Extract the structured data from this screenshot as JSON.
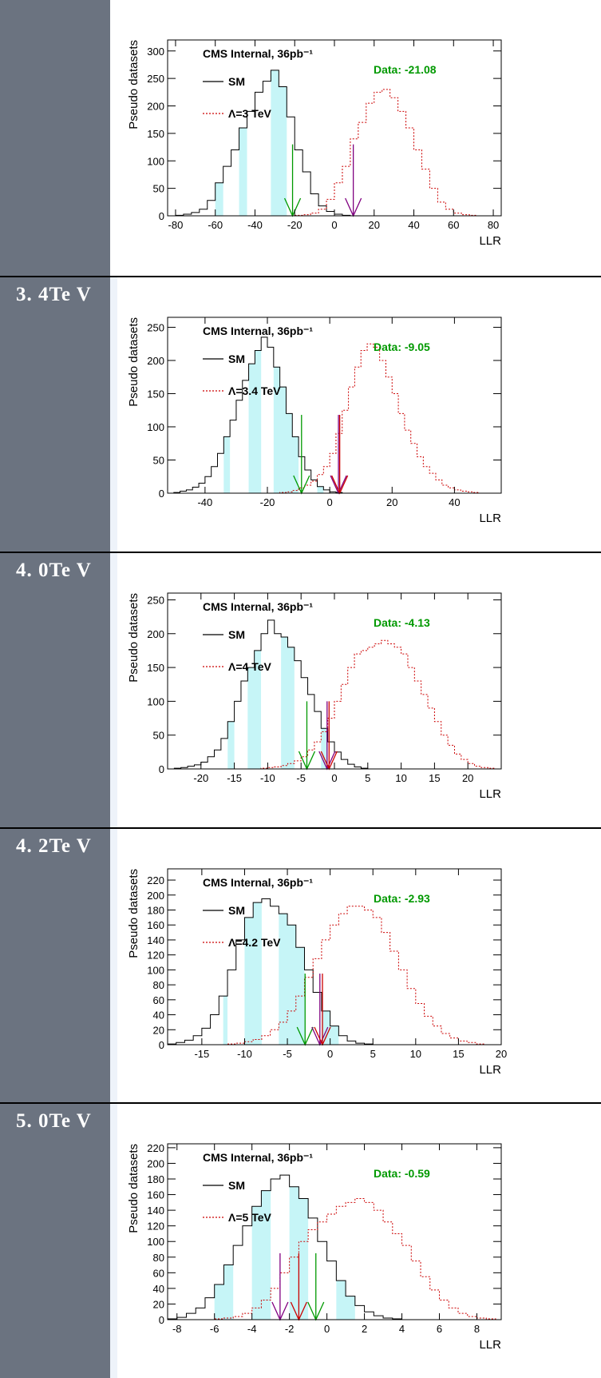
{
  "rows": [
    {
      "label": ""
    },
    {
      "label": "3. 4Te V"
    },
    {
      "label": "4. 0Te V"
    },
    {
      "label": "4. 2Te V"
    },
    {
      "label": "5. 0Te V"
    }
  ],
  "chart_data": [
    {
      "type": "histogram",
      "title": "CMS Internal, 36pb⁻¹",
      "data_label": "Data: -21.08",
      "xlabel": "LLR",
      "ylabel": "Pseudo datasets",
      "xlim": [
        -84,
        84
      ],
      "ylim": [
        0,
        320
      ],
      "xticks": [
        -80,
        -60,
        -40,
        -20,
        0,
        20,
        40,
        60,
        80
      ],
      "yticks": [
        0,
        50,
        100,
        150,
        200,
        250,
        300
      ],
      "x": [
        -84,
        -80,
        -76,
        -72,
        -68,
        -64,
        -60,
        -56,
        -52,
        -48,
        -44,
        -40,
        -36,
        -32,
        -28,
        -24,
        -20,
        -16,
        -12,
        -8,
        -4,
        0,
        4,
        8,
        12,
        16,
        20,
        24,
        28,
        32,
        36,
        40,
        44,
        48,
        52,
        56,
        60,
        64,
        68,
        72,
        76,
        80,
        84
      ],
      "series": [
        {
          "name": "SM",
          "style": "solid",
          "color": "#000000",
          "values": [
            0,
            1,
            3,
            6,
            12,
            28,
            60,
            90,
            120,
            160,
            190,
            225,
            245,
            265,
            235,
            180,
            120,
            80,
            40,
            18,
            8,
            3,
            1,
            0
          ]
        },
        {
          "name": "Λ=3 TeV",
          "style": "dotted",
          "color": "#cc0000",
          "values": [
            0,
            0,
            0,
            0,
            0,
            0,
            0,
            0,
            0,
            0,
            0,
            0,
            0,
            0,
            0,
            0,
            1,
            2,
            5,
            12,
            30,
            60,
            90,
            140,
            170,
            205,
            225,
            230,
            215,
            190,
            160,
            120,
            85,
            50,
            25,
            12,
            5,
            2,
            1,
            0
          ]
        }
      ],
      "bands": [
        [
          -60,
          -56
        ],
        [
          -48,
          -44
        ],
        [
          -32,
          -24
        ]
      ],
      "arrows": [
        {
          "x": -21.08,
          "color": "#009900",
          "y": 130
        },
        {
          "x": 9.5,
          "color": "#800080",
          "y": 130
        }
      ],
      "data_color": "#009900"
    },
    {
      "type": "histogram",
      "title": "CMS Internal, 36pb⁻¹",
      "data_label": "Data: -9.05",
      "xlabel": "LLR",
      "ylabel": "Pseudo datasets",
      "xlim": [
        -52,
        55
      ],
      "ylim": [
        0,
        265
      ],
      "xticks": [
        -40,
        -20,
        0,
        20,
        40
      ],
      "yticks": [
        0,
        50,
        100,
        150,
        200,
        250
      ],
      "x": [
        -52,
        -50,
        -48,
        -46,
        -44,
        -42,
        -40,
        -38,
        -36,
        -34,
        -32,
        -30,
        -28,
        -26,
        -24,
        -22,
        -20,
        -18,
        -16,
        -14,
        -12,
        -10,
        -8,
        -6,
        -4,
        -2,
        0,
        2,
        4,
        6,
        8,
        10,
        12,
        14,
        16,
        18,
        20,
        22,
        24,
        26,
        28,
        30,
        32,
        34,
        36,
        38,
        40,
        42,
        44,
        46,
        48,
        50,
        52,
        55
      ],
      "series": [
        {
          "name": "SM",
          "style": "solid",
          "color": "#000000",
          "values": [
            0,
            1,
            3,
            5,
            9,
            15,
            25,
            40,
            60,
            85,
            110,
            140,
            170,
            195,
            215,
            235,
            220,
            190,
            160,
            120,
            85,
            55,
            35,
            20,
            10,
            5,
            2,
            1,
            0,
            0,
            0,
            0,
            0,
            0,
            0,
            0,
            0,
            0,
            0,
            0,
            0,
            0,
            0,
            0,
            0,
            0,
            0,
            0,
            0,
            0,
            0,
            0,
            0
          ]
        },
        {
          "name": "Λ=3.4 TeV",
          "style": "dotted",
          "color": "#cc0000",
          "values": [
            0,
            0,
            0,
            0,
            0,
            0,
            0,
            0,
            0,
            0,
            0,
            0,
            0,
            0,
            0,
            0,
            0,
            0,
            1,
            2,
            4,
            8,
            12,
            18,
            28,
            40,
            60,
            90,
            125,
            160,
            190,
            215,
            225,
            220,
            200,
            175,
            150,
            120,
            95,
            75,
            55,
            40,
            30,
            20,
            12,
            8,
            5,
            3,
            2,
            1,
            0,
            0,
            0
          ]
        }
      ],
      "bands": [
        [
          -34,
          -32
        ],
        [
          -26,
          -22
        ],
        [
          -18,
          -10
        ],
        [
          -4,
          -2
        ]
      ],
      "arrows": [
        {
          "x": -9.05,
          "color": "#009900",
          "y": 118
        },
        {
          "x": 2.8,
          "color": "#800080",
          "y": 118
        },
        {
          "x": 3.2,
          "color": "#cc0000",
          "y": 118
        }
      ],
      "data_color": "#009900"
    },
    {
      "type": "histogram",
      "title": "CMS Internal, 36pb⁻¹",
      "data_label": "Data: -4.13",
      "xlabel": "LLR",
      "ylabel": "Pseudo datasets",
      "xlim": [
        -25,
        25
      ],
      "ylim": [
        0,
        260
      ],
      "xticks": [
        -20,
        -15,
        -10,
        -5,
        0,
        5,
        10,
        15,
        20
      ],
      "yticks": [
        0,
        50,
        100,
        150,
        200,
        250
      ],
      "x": [
        -25,
        -24,
        -23,
        -22,
        -21,
        -20,
        -19,
        -18,
        -17,
        -16,
        -15,
        -14,
        -13,
        -12,
        -11,
        -10,
        -9,
        -8,
        -7,
        -6,
        -5,
        -4,
        -3,
        -2,
        -1,
        0,
        1,
        2,
        3,
        4,
        5,
        6,
        7,
        8,
        9,
        10,
        11,
        12,
        13,
        14,
        15,
        16,
        17,
        18,
        19,
        20,
        21,
        22,
        23,
        24,
        25
      ],
      "series": [
        {
          "name": "SM",
          "style": "solid",
          "color": "#000000",
          "values": [
            0,
            1,
            2,
            4,
            6,
            10,
            18,
            28,
            45,
            70,
            100,
            130,
            150,
            175,
            200,
            220,
            200,
            195,
            180,
            160,
            135,
            110,
            85,
            60,
            40,
            25,
            14,
            7,
            3,
            1,
            0,
            0,
            0,
            0,
            0,
            0,
            0,
            0,
            0,
            0,
            0,
            0,
            0,
            0,
            0,
            0,
            0,
            0,
            0,
            0
          ]
        },
        {
          "name": "Λ=4 TeV",
          "style": "dotted",
          "color": "#cc0000",
          "values": [
            0,
            0,
            0,
            0,
            0,
            0,
            0,
            0,
            0,
            0,
            0,
            0,
            0,
            0,
            1,
            2,
            3,
            5,
            8,
            12,
            18,
            28,
            40,
            55,
            75,
            100,
            125,
            150,
            170,
            175,
            180,
            185,
            190,
            185,
            180,
            170,
            150,
            130,
            110,
            90,
            70,
            50,
            35,
            22,
            14,
            8,
            4,
            2,
            1,
            0
          ]
        }
      ],
      "bands": [
        [
          -16,
          -15
        ],
        [
          -13,
          -11
        ],
        [
          -8,
          -6
        ],
        [
          -2,
          -1
        ]
      ],
      "arrows": [
        {
          "x": -4.13,
          "color": "#009900",
          "y": 100
        },
        {
          "x": -1.1,
          "color": "#800080",
          "y": 100
        },
        {
          "x": -0.8,
          "color": "#cc0000",
          "y": 100
        }
      ],
      "data_color": "#009900"
    },
    {
      "type": "histogram",
      "title": "CMS Internal, 36pb⁻¹",
      "data_label": "Data: -2.93",
      "xlabel": "LLR",
      "ylabel": "Pseudo datasets",
      "xlim": [
        -19,
        20
      ],
      "ylim": [
        0,
        235
      ],
      "xticks": [
        -15,
        -10,
        -5,
        0,
        5,
        10,
        15,
        20
      ],
      "yticks": [
        0,
        20,
        40,
        60,
        80,
        100,
        120,
        140,
        160,
        180,
        200,
        220
      ],
      "x": [
        -19,
        -18,
        -17,
        -16,
        -15,
        -14,
        -13,
        -12,
        -11,
        -10,
        -9,
        -8,
        -7,
        -6,
        -5,
        -4,
        -3,
        -2,
        -1,
        0,
        1,
        2,
        3,
        4,
        5,
        6,
        7,
        8,
        9,
        10,
        11,
        12,
        13,
        14,
        15,
        16,
        17,
        18,
        19,
        20
      ],
      "series": [
        {
          "name": "SM",
          "style": "solid",
          "color": "#000000",
          "values": [
            1,
            3,
            6,
            12,
            22,
            40,
            65,
            100,
            140,
            170,
            190,
            195,
            185,
            175,
            160,
            130,
            100,
            70,
            45,
            25,
            12,
            5,
            2,
            1,
            0,
            0,
            0,
            0,
            0,
            0,
            0,
            0,
            0,
            0,
            0,
            0,
            0,
            0,
            0
          ]
        },
        {
          "name": "Λ=4.2 TeV",
          "style": "dotted",
          "color": "#cc0000",
          "values": [
            0,
            0,
            0,
            0,
            0,
            0,
            0,
            1,
            2,
            4,
            7,
            12,
            20,
            30,
            45,
            65,
            90,
            115,
            140,
            160,
            175,
            185,
            185,
            180,
            170,
            150,
            125,
            100,
            75,
            55,
            38,
            25,
            15,
            9,
            5,
            3,
            1,
            0,
            0
          ]
        }
      ],
      "bands": [
        [
          -12.5,
          -12
        ],
        [
          -10,
          -8
        ],
        [
          -6,
          -3
        ],
        [
          -1,
          1
        ]
      ],
      "arrows": [
        {
          "x": -2.93,
          "color": "#009900",
          "y": 95
        },
        {
          "x": -1.2,
          "color": "#800080",
          "y": 95
        },
        {
          "x": -0.9,
          "color": "#cc0000",
          "y": 95
        }
      ],
      "data_color": "#009900"
    },
    {
      "type": "histogram",
      "title": "CMS Internal, 36pb⁻¹",
      "data_label": "Data: -0.59",
      "xlabel": "LLR",
      "ylabel": "Pseudo datasets",
      "xlim": [
        -8.5,
        9.3
      ],
      "ylim": [
        0,
        225
      ],
      "xticks": [
        -8,
        -6,
        -4,
        -2,
        0,
        2,
        4,
        6,
        8
      ],
      "yticks": [
        0,
        20,
        40,
        60,
        80,
        100,
        120,
        140,
        160,
        180,
        200,
        220
      ],
      "x": [
        -8.5,
        -8,
        -7.5,
        -7,
        -6.5,
        -6,
        -5.5,
        -5,
        -4.5,
        -4,
        -3.5,
        -3,
        -2.5,
        -2,
        -1.5,
        -1,
        -0.5,
        0,
        0.5,
        1,
        1.5,
        2,
        2.5,
        3,
        3.5,
        4,
        4.5,
        5,
        5.5,
        6,
        6.5,
        7,
        7.5,
        8,
        8.5,
        9,
        9.3
      ],
      "series": [
        {
          "name": "SM",
          "style": "solid",
          "color": "#000000",
          "values": [
            1,
            3,
            8,
            15,
            28,
            45,
            70,
            95,
            120,
            145,
            165,
            180,
            185,
            170,
            155,
            130,
            100,
            75,
            50,
            30,
            18,
            10,
            5,
            2,
            1,
            0,
            0,
            0,
            0,
            0,
            0,
            0,
            0,
            0,
            0,
            0
          ]
        },
        {
          "name": "Λ=5 TeV",
          "style": "dotted",
          "color": "#cc0000",
          "values": [
            0,
            0,
            0,
            0,
            0,
            1,
            2,
            4,
            8,
            15,
            25,
            40,
            60,
            80,
            100,
            115,
            125,
            135,
            145,
            150,
            155,
            150,
            140,
            125,
            110,
            95,
            75,
            55,
            38,
            25,
            15,
            8,
            4,
            2,
            1,
            0
          ]
        }
      ],
      "bands": [
        [
          -6,
          -5
        ],
        [
          -4,
          -3
        ],
        [
          -2,
          -1
        ],
        [
          0.5,
          1.5
        ]
      ],
      "arrows": [
        {
          "x": -0.59,
          "color": "#009900",
          "y": 85
        },
        {
          "x": -2.5,
          "color": "#800080",
          "y": 85
        },
        {
          "x": -1.5,
          "color": "#cc0000",
          "y": 85
        }
      ],
      "data_color": "#009900"
    }
  ]
}
